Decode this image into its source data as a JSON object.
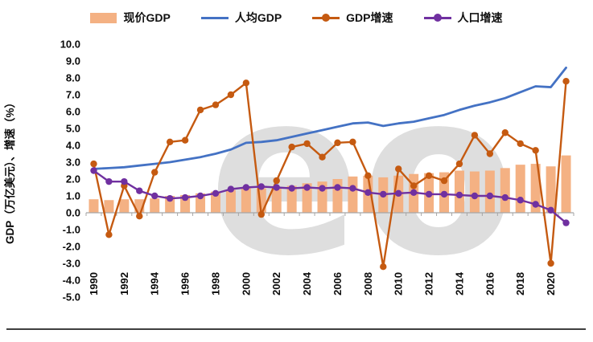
{
  "chart_data": {
    "type": "combo",
    "ylabel": "GDP（万亿美元）、增速（%）",
    "ylim": [
      -5,
      10
    ],
    "ytick_labels": [
      "10.0",
      "9.0",
      "8.0",
      "7.0",
      "6.0",
      "5.0",
      "4.0",
      "3.0",
      "2.0",
      "1.0",
      "0.0",
      "-1.0",
      "-2.0",
      "-3.0",
      "-4.0",
      "-5.0"
    ],
    "x_years": [
      1990,
      1991,
      1992,
      1993,
      1994,
      1995,
      1996,
      1997,
      1998,
      1999,
      2000,
      2001,
      2002,
      2003,
      2004,
      2005,
      2006,
      2007,
      2008,
      2009,
      2010,
      2011,
      2012,
      2013,
      2014,
      2015,
      2016,
      2017,
      2018,
      2019,
      2020,
      2021
    ],
    "xtick_labels": [
      "1990",
      "1992",
      "1994",
      "1996",
      "1998",
      "2000",
      "2002",
      "2004",
      "2006",
      "2008",
      "2010",
      "2012",
      "2014",
      "2016",
      "2018",
      "2020"
    ],
    "legend_position": "top",
    "grid": false,
    "axis_color": "#a6a6a6",
    "watermark": "eo",
    "series": [
      {
        "name": "现价GDP",
        "type": "bar",
        "color": "#F4B183",
        "values": [
          0.8,
          0.75,
          0.8,
          0.8,
          0.85,
          1.0,
          1.05,
          1.15,
          1.25,
          1.35,
          1.45,
          1.45,
          1.5,
          1.6,
          1.75,
          1.85,
          2.0,
          2.15,
          2.2,
          2.1,
          2.2,
          2.3,
          2.35,
          2.4,
          2.5,
          2.45,
          2.5,
          2.65,
          2.85,
          2.9,
          2.75,
          3.4
        ]
      },
      {
        "name": "人均GDP",
        "type": "line",
        "color": "#4472C4",
        "values": [
          2.6,
          2.65,
          2.7,
          2.8,
          2.9,
          3.0,
          3.15,
          3.3,
          3.5,
          3.75,
          4.15,
          4.2,
          4.3,
          4.5,
          4.7,
          4.9,
          5.1,
          5.3,
          5.35,
          5.15,
          5.3,
          5.4,
          5.6,
          5.8,
          6.1,
          6.35,
          6.55,
          6.8,
          7.15,
          7.5,
          7.45,
          8.6
        ]
      },
      {
        "name": "GDP增速",
        "type": "line-marker",
        "color": "#C55A11",
        "values": [
          2.9,
          -1.3,
          1.6,
          -0.2,
          2.4,
          4.2,
          4.3,
          6.1,
          6.4,
          7.0,
          7.7,
          -0.1,
          1.9,
          3.9,
          4.1,
          3.3,
          4.15,
          4.2,
          2.2,
          -3.2,
          2.6,
          1.6,
          2.2,
          1.9,
          2.9,
          4.6,
          3.5,
          4.75,
          4.1,
          3.7,
          -3.0,
          7.8
        ]
      },
      {
        "name": "人口增速",
        "type": "line-marker",
        "color": "#7030A0",
        "values": [
          2.5,
          1.85,
          1.85,
          1.3,
          1.0,
          0.85,
          0.9,
          1.0,
          1.15,
          1.4,
          1.5,
          1.55,
          1.5,
          1.45,
          1.5,
          1.45,
          1.5,
          1.45,
          1.2,
          1.1,
          1.15,
          1.2,
          1.1,
          1.1,
          1.05,
          1.0,
          1.0,
          0.9,
          0.75,
          0.5,
          0.15,
          -0.6
        ]
      }
    ]
  }
}
